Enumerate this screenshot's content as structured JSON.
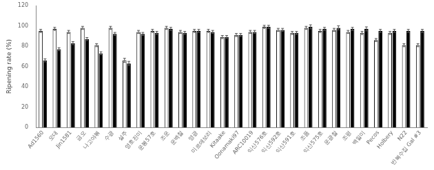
{
  "chart_data": {
    "type": "bar",
    "y_label": "Ripening rate (%)",
    "categories": [
      "Ad1560",
      "오대",
      "Jin1581",
      "금오",
      "나고야볶",
      "수광",
      "설주",
      "영호진미",
      "운봉57호",
      "조운",
      "운백찰",
      "영광",
      "미르애보리",
      "Kitaake",
      "Oonamaki97",
      "ARC10019",
      "익산576호",
      "익산592호",
      "익산591호",
      "조품",
      "익산575호",
      "운광찰",
      "조평",
      "백일미",
      "Pecos",
      "Holbery",
      "N22",
      "반복수집 Gal #3"
    ],
    "series": [
      {
        "color": "#ffffff",
        "values": [
          95,
          97,
          94,
          98,
          81,
          98,
          66,
          94,
          95,
          98,
          94,
          95,
          95,
          89,
          91,
          94,
          99,
          96,
          93,
          98,
          95,
          96,
          94,
          93,
          86,
          93,
          81,
          81
        ],
        "errors": [
          1.5,
          1.5,
          1.5,
          1.5,
          1.5,
          1.5,
          2,
          1.5,
          1.5,
          1.5,
          1.5,
          1.5,
          1.5,
          1.5,
          1.5,
          1.5,
          1.5,
          1.5,
          1.5,
          1.5,
          1.5,
          1.5,
          1.5,
          1.5,
          1.5,
          1.5,
          1.5,
          1.5
        ]
      },
      {
        "color": "#000000",
        "values": [
          66,
          77,
          83,
          87,
          73,
          92,
          63,
          92,
          93,
          97,
          93,
          95,
          94,
          89,
          91,
          94,
          99,
          96,
          93,
          99,
          97,
          98,
          97,
          97,
          95,
          95,
          95,
          95
        ],
        "errors": [
          1.5,
          1.5,
          1.5,
          1.5,
          1.5,
          1.5,
          2,
          1.5,
          1.5,
          1.5,
          1.5,
          1.5,
          1.5,
          1.5,
          1.5,
          1.5,
          1.5,
          1.5,
          1.5,
          2,
          1.5,
          2,
          1.5,
          2,
          1.5,
          1.5,
          1.5,
          1.5
        ]
      }
    ],
    "ylim": [
      0,
      120
    ],
    "yticks": [
      0,
      20,
      40,
      60,
      80,
      100,
      120
    ],
    "grid": false
  }
}
